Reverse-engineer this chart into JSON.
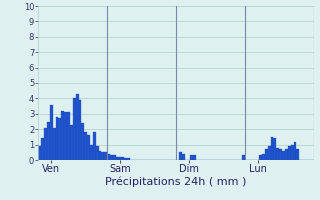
{
  "title": "Précipitations 24h ( mm )",
  "ylim": [
    0,
    10
  ],
  "yticks": [
    0,
    1,
    2,
    3,
    4,
    5,
    6,
    7,
    8,
    9,
    10
  ],
  "background_color": "#dff0f0",
  "bar_color": "#2255cc",
  "bar_edge_color": "#1144bb",
  "grid_color": "#b0cccc",
  "day_line_color": "#7788aa",
  "xtick_labels": [
    "Ven",
    "Sam",
    "Dim",
    "Lun"
  ],
  "xtick_positions": [
    4,
    28,
    52,
    76
  ],
  "day_vline_positions": [
    24,
    48,
    72
  ],
  "num_bars": 96,
  "values": [
    0.9,
    1.4,
    2.1,
    2.5,
    3.6,
    2.1,
    2.8,
    2.7,
    3.2,
    3.1,
    3.1,
    2.3,
    4.0,
    4.3,
    3.9,
    2.4,
    1.8,
    1.6,
    1.0,
    1.8,
    0.9,
    0.6,
    0.5,
    0.5,
    0.4,
    0.3,
    0.3,
    0.2,
    0.2,
    0.2,
    0.15,
    0.1,
    0.0,
    0.0,
    0.0,
    0.0,
    0.0,
    0.0,
    0.0,
    0.0,
    0.0,
    0.0,
    0.0,
    0.0,
    0.0,
    0.0,
    0.0,
    0.0,
    0.0,
    0.5,
    0.4,
    0.0,
    0.0,
    0.3,
    0.3,
    0.0,
    0.0,
    0.0,
    0.0,
    0.0,
    0.0,
    0.0,
    0.0,
    0.0,
    0.0,
    0.0,
    0.0,
    0.0,
    0.0,
    0.0,
    0.0,
    0.3,
    0.0,
    0.0,
    0.0,
    0.0,
    0.0,
    0.3,
    0.4,
    0.7,
    0.9,
    1.5,
    1.4,
    0.8,
    0.7,
    0.6,
    0.7,
    0.9,
    1.0,
    1.2,
    0.7,
    0.0,
    0.0,
    0.0,
    0.0,
    0.0
  ],
  "figsize": [
    3.2,
    2.0
  ],
  "dpi": 100,
  "ytick_fontsize": 6,
  "xtick_fontsize": 7,
  "title_fontsize": 8
}
